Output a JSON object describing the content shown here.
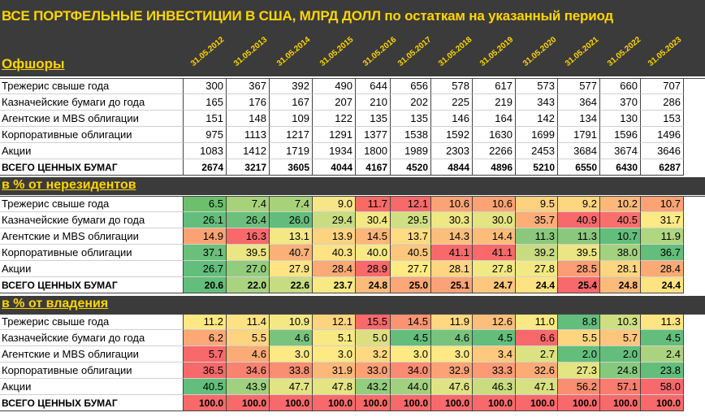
{
  "title": "ВСЕ ПОРТФЕЛЬНЫЕ ИНВЕСТИЦИИ В США, МЛРД ДОЛЛ по остаткам на указанный период",
  "section1": "Офшоры",
  "section2": "в % от нерезидентов",
  "section3": "в % от владения",
  "dates": [
    "31.05.2012",
    "31.05.2013",
    "31.05.2014",
    "31.05.2015",
    "31.05.2016",
    "31.05.2017",
    "31.05.2018",
    "31.05.2019",
    "31.05.2020",
    "31.05.2021",
    "31.05.2022",
    "31.05.2023"
  ],
  "offshore": [
    {
      "label": "Трежерис свыше года",
      "values": [
        "300",
        "367",
        "392",
        "490",
        "644",
        "656",
        "578",
        "617",
        "573",
        "577",
        "660",
        "707"
      ]
    },
    {
      "label": "Казначейские бумаги до года",
      "values": [
        "165",
        "176",
        "167",
        "207",
        "210",
        "202",
        "225",
        "219",
        "343",
        "364",
        "370",
        "286"
      ]
    },
    {
      "label": "Агентские и MBS облигации",
      "values": [
        "151",
        "148",
        "109",
        "122",
        "135",
        "135",
        "146",
        "164",
        "142",
        "134",
        "130",
        "153"
      ]
    },
    {
      "label": "Корпоративные облигации",
      "values": [
        "975",
        "1113",
        "1217",
        "1291",
        "1377",
        "1538",
        "1592",
        "1630",
        "1699",
        "1791",
        "1596",
        "1496"
      ]
    },
    {
      "label": "Акции",
      "values": [
        "1083",
        "1412",
        "1719",
        "1934",
        "1800",
        "1989",
        "2303",
        "2266",
        "2453",
        "3684",
        "3674",
        "3646"
      ]
    },
    {
      "label": "ВСЕГО ЦЕННЫХ БУМАГ",
      "values": [
        "2674",
        "3217",
        "3605",
        "4044",
        "4167",
        "4520",
        "4844",
        "4896",
        "5210",
        "6550",
        "6430",
        "6287"
      ],
      "bold": true
    }
  ],
  "nonresidents": [
    {
      "label": "Трежерис свыше года",
      "values": [
        "6.5",
        "7.4",
        "7.4",
        "9.0",
        "11.7",
        "12.1",
        "10.6",
        "10.6",
        "9.5",
        "9.2",
        "10.2",
        "10.7"
      ],
      "colors": [
        "#6ebf6b",
        "#a8d27a",
        "#a8d27a",
        "#f7e688",
        "#f76a66",
        "#f8696b",
        "#fba374",
        "#fba374",
        "#fcd27f",
        "#fdd680",
        "#fcb879",
        "#fba374"
      ]
    },
    {
      "label": "Казначейские бумаги до года",
      "values": [
        "26.1",
        "26.4",
        "26.0",
        "29.4",
        "30.4",
        "29.5",
        "30.3",
        "30.0",
        "35.7",
        "40.9",
        "40.5",
        "31.7"
      ],
      "colors": [
        "#63be7b",
        "#6cc07b",
        "#62bd7b",
        "#c9dd80",
        "#f2e884",
        "#d0df81",
        "#eee783",
        "#e4e482",
        "#fcad78",
        "#f8696b",
        "#f96f6c",
        "#ffe985"
      ]
    },
    {
      "label": "Агентские и MBS облигации",
      "values": [
        "14.9",
        "16.3",
        "13.1",
        "13.9",
        "14.5",
        "13.7",
        "14.3",
        "14.4",
        "11.3",
        "11.3",
        "10.7",
        "11.9"
      ],
      "colors": [
        "#fba274",
        "#f8696b",
        "#f3e884",
        "#fed37f",
        "#fcb579",
        "#fddc82",
        "#fcbf7b",
        "#fcbc7a",
        "#8bc87d",
        "#8bc87d",
        "#63be7b",
        "#afd77f"
      ]
    },
    {
      "label": "Корпоративные облигации",
      "values": [
        "37.1",
        "39.5",
        "40.7",
        "40.3",
        "40.0",
        "40.5",
        "41.1",
        "41.1",
        "39.2",
        "39.5",
        "38.0",
        "36.7"
      ],
      "colors": [
        "#6ac07b",
        "#ebe683",
        "#fbb078",
        "#fde383",
        "#f8e985",
        "#fcc67c",
        "#f8696b",
        "#f8696b",
        "#c7dc80",
        "#ebe683",
        "#a2d27e",
        "#63be7b"
      ]
    },
    {
      "label": "Акции",
      "values": [
        "26.7",
        "27.0",
        "27.9",
        "28.4",
        "28.9",
        "27.7",
        "28.1",
        "27.8",
        "27.8",
        "28.5",
        "28.1",
        "28.4"
      ],
      "colors": [
        "#63be7b",
        "#94cc7e",
        "#ffe484",
        "#fbaa76",
        "#f8696b",
        "#ffeb84",
        "#fed680",
        "#f2e884",
        "#f2e884",
        "#fb9e75",
        "#fed680",
        "#fbaa76"
      ]
    },
    {
      "label": "ВСЕГО ЦЕННЫХ БУМАГ",
      "values": [
        "20.6",
        "22.0",
        "22.6",
        "23.7",
        "24.8",
        "25.0",
        "25.1",
        "24.7",
        "24.4",
        "25.4",
        "24.8",
        "24.4"
      ],
      "bold": true,
      "colors": [
        "#63be7b",
        "#a9d37f",
        "#c6dc80",
        "#f8e984",
        "#fcbb7a",
        "#fca777",
        "#fba376",
        "#fdc87d",
        "#fee383",
        "#f8696b",
        "#fcbb7a",
        "#fee383"
      ]
    }
  ],
  "ownership": [
    {
      "label": "Трежерис свыше года",
      "values": [
        "11.2",
        "11.4",
        "10.9",
        "12.1",
        "15.5",
        "14.5",
        "11.9",
        "12.6",
        "11.0",
        "8.8",
        "10.3",
        "11.3"
      ],
      "colors": [
        "#fde883",
        "#fee283",
        "#f4e884",
        "#fdd37f",
        "#f8696b",
        "#fa9473",
        "#fed880",
        "#fcbf7b",
        "#f8e984",
        "#63be7b",
        "#cedf81",
        "#fde583"
      ]
    },
    {
      "label": "Казначейские бумаги до года",
      "values": [
        "6.2",
        "5.5",
        "4.6",
        "5.1",
        "5.0",
        "4.5",
        "4.6",
        "4.5",
        "6.6",
        "5.5",
        "5.7",
        "4.5"
      ],
      "colors": [
        "#fba877",
        "#fed57f",
        "#78c47c",
        "#f9e985",
        "#ddde82",
        "#63be7b",
        "#78c47c",
        "#63be7b",
        "#f8696b",
        "#fed57f",
        "#fdc67c",
        "#63be7b"
      ]
    },
    {
      "label": "Агентские и MBS облигации",
      "values": [
        "5.7",
        "4.6",
        "3.0",
        "3.0",
        "3.2",
        "3.0",
        "3.0",
        "3.4",
        "2.7",
        "2.0",
        "2.0",
        "2.4"
      ],
      "colors": [
        "#f8696b",
        "#fbab76",
        "#fee984",
        "#fee984",
        "#fed981",
        "#fee984",
        "#fee984",
        "#fdc97d",
        "#dce282",
        "#63be7b",
        "#63be7b",
        "#abd37f"
      ]
    },
    {
      "label": "Корпоративные облигации",
      "values": [
        "36.5",
        "34.6",
        "33.8",
        "31.9",
        "33.0",
        "34.0",
        "32.9",
        "33.3",
        "32.6",
        "27.3",
        "24.8",
        "23.8"
      ],
      "colors": [
        "#f8696b",
        "#f9836f",
        "#fa8e71",
        "#fcb878",
        "#fca075",
        "#fa8b71",
        "#fca275",
        "#fb9a74",
        "#fcaa76",
        "#e5e483",
        "#85c97d",
        "#63be7b"
      ]
    },
    {
      "label": "Акции",
      "values": [
        "40.5",
        "43.9",
        "47.7",
        "47.8",
        "43.2",
        "44.0",
        "47.6",
        "46.3",
        "47.1",
        "56.2",
        "57.1",
        "58.0"
      ],
      "colors": [
        "#63be7b",
        "#9fd17e",
        "#e2e383",
        "#e4e483",
        "#93cd7e",
        "#a1d17e",
        "#e0e383",
        "#c9dc80",
        "#d7e082",
        "#fa8e71",
        "#f97c6e",
        "#f8696b"
      ]
    },
    {
      "label": "ВСЕГО ЦЕННЫХ БУМАГ",
      "values": [
        "100.0",
        "100.0",
        "100.0",
        "100.0",
        "100.0",
        "100.0",
        "100.0",
        "100.0",
        "100.0",
        "100.0",
        "100.0",
        "100.0"
      ],
      "bold": true,
      "colors": [
        "#f8696b",
        "#f8696b",
        "#f8696b",
        "#f8696b",
        "#f8696b",
        "#f8696b",
        "#f8696b",
        "#f8696b",
        "#f8696b",
        "#f8696b",
        "#f8696b",
        "#f8696b"
      ]
    }
  ]
}
